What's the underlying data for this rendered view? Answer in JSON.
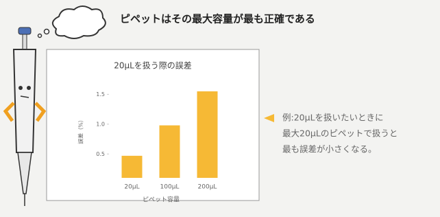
{
  "headline": "ピペットはその最大容量が最も正確である",
  "note": {
    "lines": [
      "例:20μLを扱いたいときに",
      "最大20μLのピペットで扱うと",
      "最も誤差が小さくなる。"
    ]
  },
  "chart_data": {
    "type": "bar",
    "title": "20μLを扱う際の誤差",
    "x_label": "ピペット容量",
    "y_label": "誤差（%）",
    "categories": [
      "20μL",
      "100μL",
      "200μL"
    ],
    "values": [
      0.47,
      0.98,
      1.55
    ],
    "color": "#f6b935",
    "ylim": [
      0.1,
      1.7
    ],
    "yticks": [
      0.5,
      {
        "value": 1,
        "label": "1.0"
      },
      1.5
    ],
    "grid": false
  }
}
